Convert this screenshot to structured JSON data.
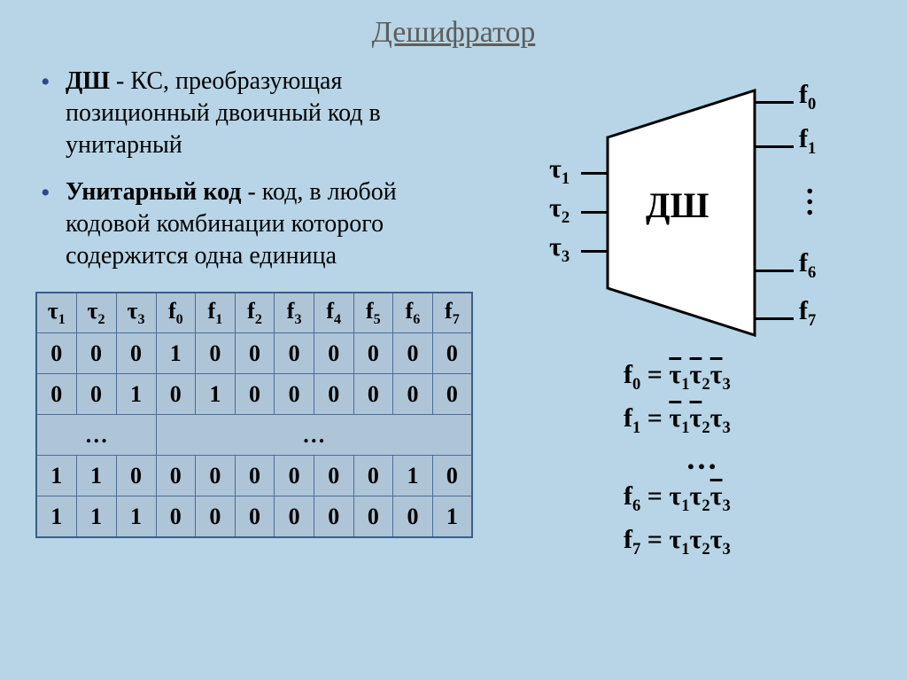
{
  "title": "Дешифратор",
  "bullets": {
    "b1_bold": "ДШ",
    "b1_rest": " - КС, преобразующая позиционный двоичный код в унитарный",
    "b2_bold": "Унитарный код",
    "b2_rest": " - код, в любой кодовой комбинации которого содержится одна единица"
  },
  "table": {
    "headers": [
      "τ1",
      "τ2",
      "τ3",
      "f0",
      "f1",
      "f2",
      "f3",
      "f4",
      "f5",
      "f6",
      "f7"
    ],
    "rows": [
      [
        "0",
        "0",
        "0",
        "1",
        "0",
        "0",
        "0",
        "0",
        "0",
        "0",
        "0"
      ],
      [
        "0",
        "0",
        "1",
        "0",
        "1",
        "0",
        "0",
        "0",
        "0",
        "0",
        "0"
      ]
    ],
    "ellipsis_left": "…",
    "ellipsis_right": "…",
    "rows2": [
      [
        "1",
        "1",
        "0",
        "0",
        "0",
        "0",
        "0",
        "0",
        "0",
        "1",
        "0"
      ],
      [
        "1",
        "1",
        "1",
        "0",
        "0",
        "0",
        "0",
        "0",
        "0",
        "0",
        "1"
      ]
    ]
  },
  "diagram": {
    "label": "ДШ",
    "inputs": [
      "τ1",
      "τ2",
      "τ3"
    ],
    "outputs": [
      "f0",
      "f1",
      "f6",
      "f7"
    ]
  },
  "equations": {
    "e1_lhs": "f0",
    "e2_lhs": "f1",
    "e3_lhs": "f6",
    "e4_lhs": "f7",
    "t1": "τ",
    "s1": "1",
    "t2": "τ",
    "s2": "2",
    "t3": "τ",
    "s3": "3",
    "eq": " = ",
    "dots": "…"
  },
  "style": {
    "bg": "#b7d5e6",
    "title_color": "#5e5e5e",
    "bullet_color": "#2b4a8b",
    "table_border": "#3a5e8a",
    "cell_bg": "#aec5d8",
    "stroke": "#000000",
    "fill": "#ffffff"
  }
}
